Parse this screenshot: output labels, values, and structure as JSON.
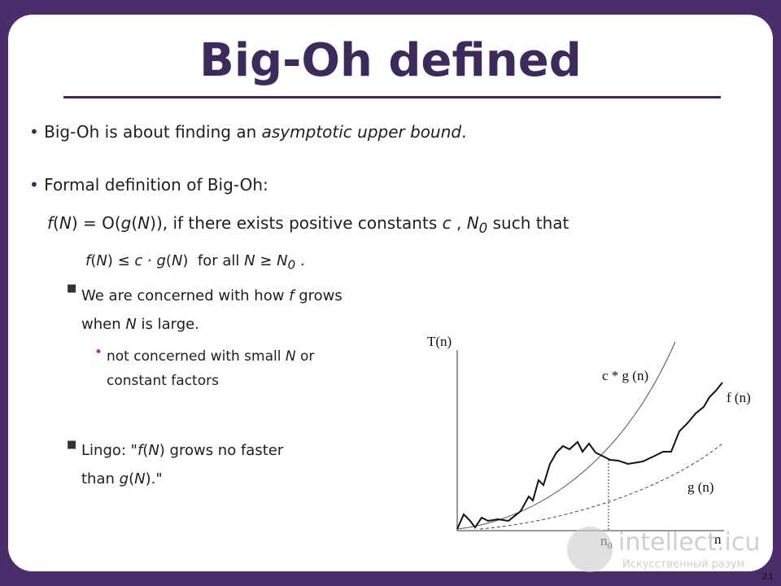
{
  "title": "Big-Oh defined",
  "bullets": [
    {
      "runs": [
        "Big-Oh is about finding an ",
        "asymptotic upper bound",
        "."
      ]
    },
    {
      "runs": [
        "Formal definition of Big-Oh:"
      ]
    }
  ],
  "definition": {
    "line1": [
      "f",
      "(",
      "N",
      ") = O(",
      "g",
      "(",
      "N",
      "))",
      ", if there exists positive constants ",
      "c",
      " , ",
      "N",
      "0",
      " such that"
    ],
    "line2": [
      "f",
      "(",
      "N",
      ") ≤ ",
      "c",
      " · ",
      "g",
      "(",
      "N",
      ")  for all ",
      "N",
      " ≥ ",
      "N",
      "0",
      " ."
    ]
  },
  "sub_bullets": [
    {
      "runs": [
        "We are concerned with how ",
        "f",
        " grows when ",
        "N",
        " is large."
      ],
      "sub": {
        "runs": [
          "not concerned with small ",
          "N",
          " or constant factors"
        ]
      }
    },
    {
      "runs": [
        "Lingo: \"",
        "f",
        "(",
        "N",
        ") grows no faster than ",
        "g",
        "(",
        "N",
        ").\""
      ]
    }
  ],
  "figure": {
    "y_label": "T(n)",
    "cg_label": "c * g (n)",
    "f_label": "f (n)",
    "g_label": "g (n)",
    "n0_label": [
      "n",
      "0"
    ],
    "x_label": "n"
  },
  "watermark": {
    "site": "intellect.icu",
    "tagline": "Искусственный разум"
  },
  "page_number": "21"
}
